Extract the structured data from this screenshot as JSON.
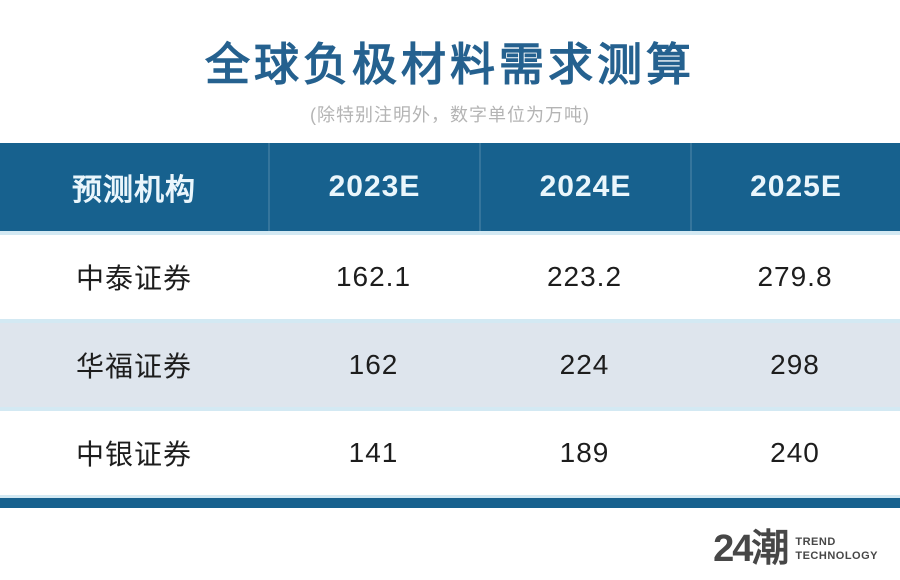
{
  "title": "全球负极材料需求测算",
  "subtitle": "(除特别注明外，数字单位为万吨)",
  "table": {
    "columns": [
      "预测机构",
      "2023E",
      "2024E",
      "2025E"
    ],
    "rows": [
      {
        "org": "中泰证券",
        "v1": "162.1",
        "v2": "223.2",
        "v3": "279.8"
      },
      {
        "org": "华福证券",
        "v1": "162",
        "v2": "224",
        "v3": "298"
      },
      {
        "org": "中银证券",
        "v1": "141",
        "v2": "189",
        "v3": "240"
      }
    ]
  },
  "chart_data": {
    "type": "table",
    "title": "全球负极材料需求测算",
    "subtitle": "(除特别注明外，数字单位为万吨)",
    "columns": [
      "预测机构",
      "2023E",
      "2024E",
      "2025E"
    ],
    "rows": [
      [
        "中泰证券",
        162.1,
        223.2,
        279.8
      ],
      [
        "华福证券",
        162,
        224,
        298
      ],
      [
        "中银证券",
        141,
        189,
        240
      ]
    ]
  },
  "footer": {
    "logo_mark": "24潮",
    "brand_line1": "TREND",
    "brand_line2": "TECHNOLOGY"
  },
  "colors": {
    "header_bg": "#17618e",
    "title": "#25618f",
    "row_alt_bg": "#dee5ed",
    "separator": "#d3e9f3",
    "accent_bar": "#17618e",
    "subtitle": "#b4b4b4",
    "cell_text": "#1d1d1d",
    "logo": "#474747"
  }
}
